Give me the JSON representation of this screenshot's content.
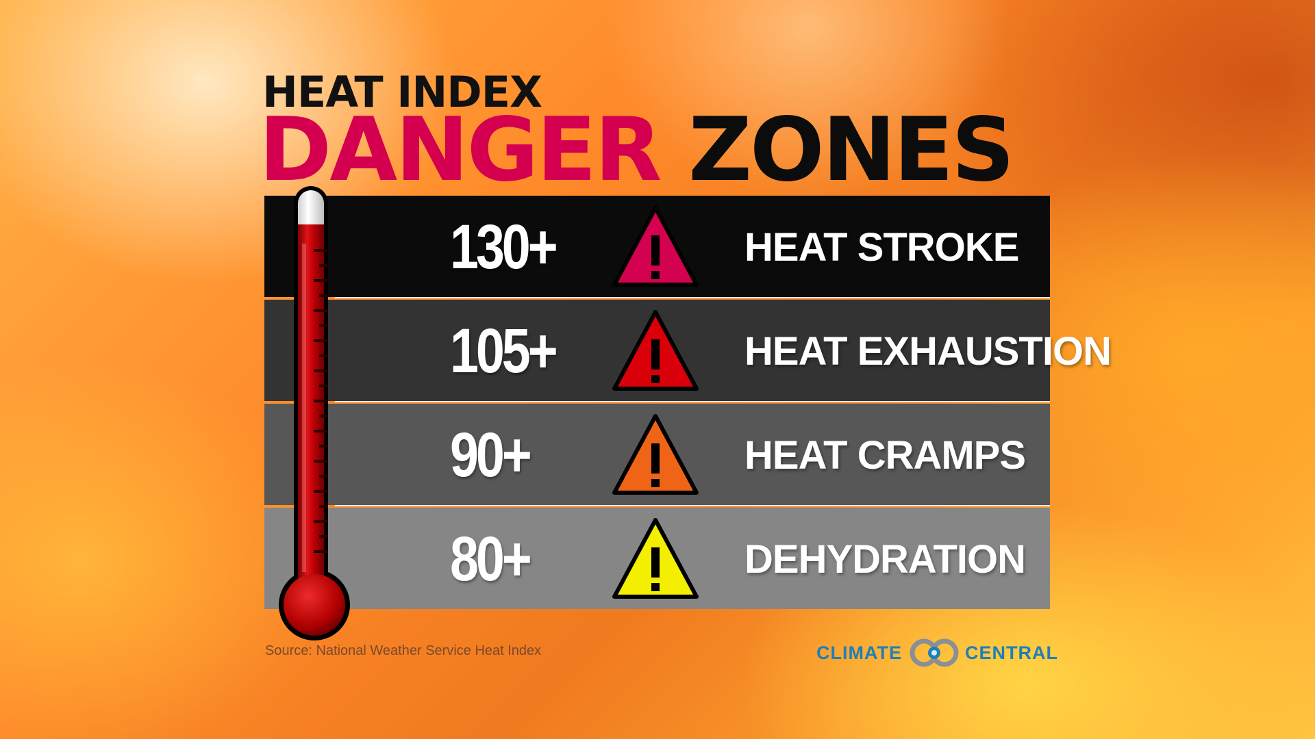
{
  "title": {
    "line1": "HEAT INDEX",
    "danger": "DANGER",
    "zones": "ZONES"
  },
  "colors": {
    "danger_accent": "#d4004f",
    "brand_blue": "#1f7fb8"
  },
  "rows": [
    {
      "threshold": "130+",
      "label": "HEAT STROKE",
      "icon": "warning-icon",
      "icon_color": "#d40050",
      "row_bg": "#0b0b0b"
    },
    {
      "threshold": "105+",
      "label": "HEAT EXHAUSTION",
      "icon": "warning-icon",
      "icon_color": "#d9000a",
      "row_bg": "#333333"
    },
    {
      "threshold": "90+",
      "label": "HEAT CRAMPS",
      "icon": "warning-icon",
      "icon_color": "#f06418",
      "row_bg": "#575757"
    },
    {
      "threshold": "80+",
      "label": "DEHYDRATION",
      "icon": "warning-icon",
      "icon_color": "#f4ee00",
      "row_bg": "#868686"
    }
  ],
  "source": "Source: National Weather Service Heat Index",
  "brand": {
    "left": "CLIMATE",
    "right": "CENTRAL",
    "icon": "climate-central-logo"
  }
}
